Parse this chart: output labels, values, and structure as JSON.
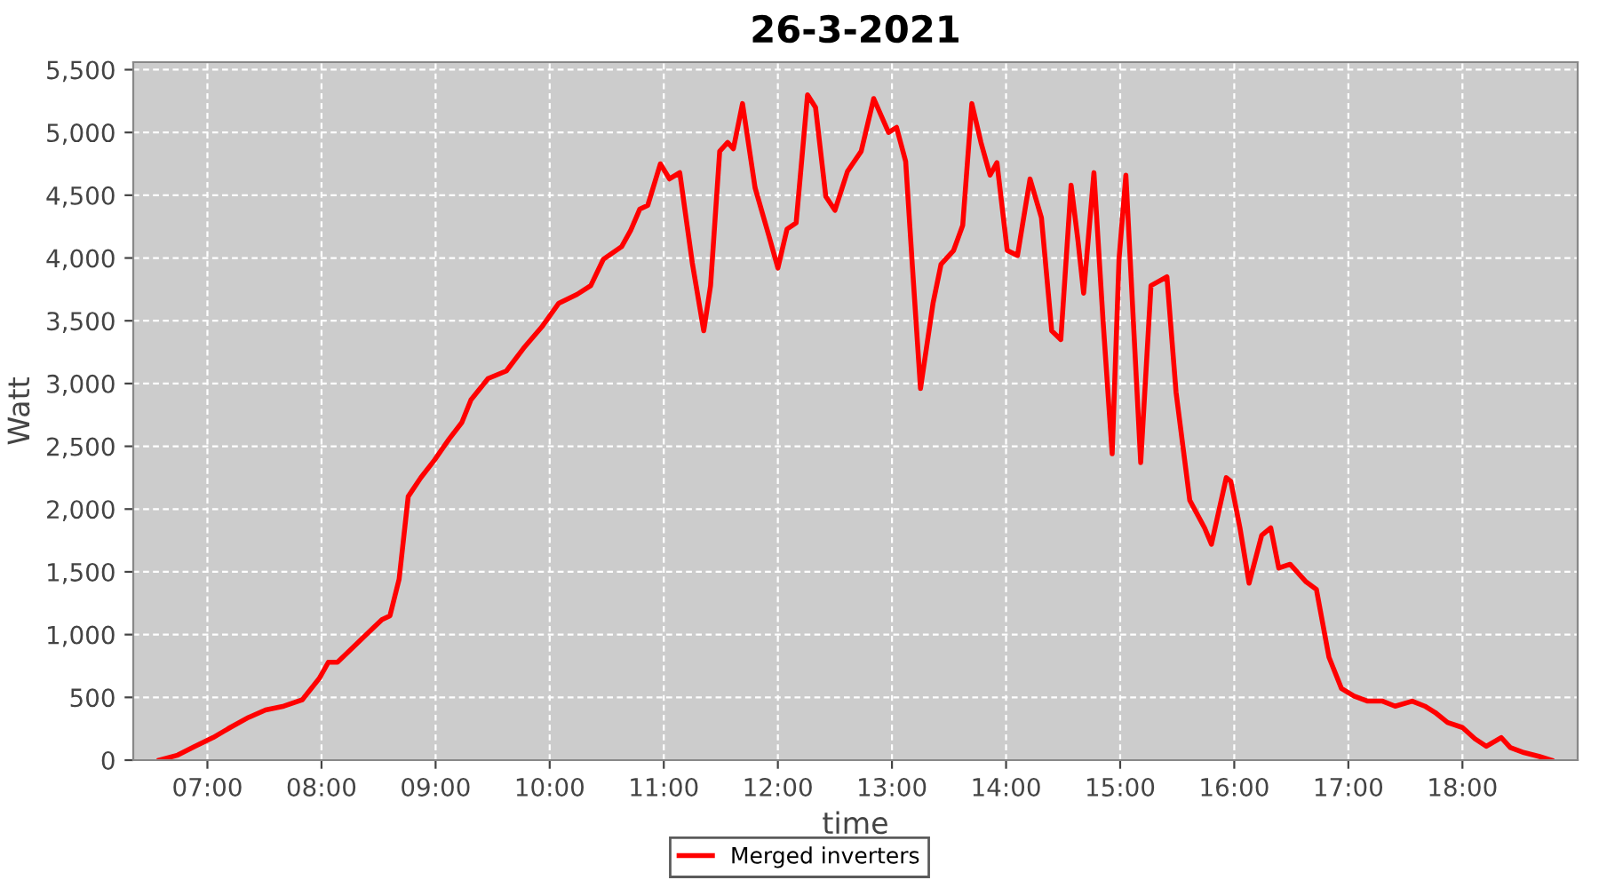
{
  "chart_data": {
    "type": "line",
    "title": "26-3-2021",
    "xlabel": "time",
    "ylabel": "Watt",
    "x": [
      6.58,
      6.74,
      6.89,
      7.05,
      7.2,
      7.36,
      7.51,
      7.67,
      7.83,
      7.98,
      8.06,
      8.14,
      8.29,
      8.45,
      8.53,
      8.6,
      8.68,
      8.76,
      8.87,
      8.99,
      9.12,
      9.23,
      9.31,
      9.46,
      9.62,
      9.77,
      9.93,
      10.08,
      10.24,
      10.36,
      10.47,
      10.63,
      10.71,
      10.79,
      10.86,
      10.97,
      11.05,
      11.14,
      11.25,
      11.35,
      11.41,
      11.49,
      11.56,
      11.61,
      11.69,
      11.8,
      11.92,
      12.0,
      12.08,
      12.16,
      12.26,
      12.33,
      12.42,
      12.5,
      12.61,
      12.73,
      12.84,
      12.97,
      13.04,
      13.12,
      13.18,
      13.25,
      13.36,
      13.43,
      13.54,
      13.62,
      13.7,
      13.78,
      13.86,
      13.92,
      14.01,
      14.1,
      14.21,
      14.31,
      14.4,
      14.48,
      14.57,
      14.63,
      14.68,
      14.77,
      14.85,
      14.93,
      14.99,
      15.05,
      15.12,
      15.18,
      15.27,
      15.33,
      15.41,
      15.49,
      15.61,
      15.74,
      15.8,
      15.93,
      15.97,
      16.05,
      16.13,
      16.24,
      16.32,
      16.39,
      16.49,
      16.63,
      16.72,
      16.83,
      16.94,
      17.05,
      17.17,
      17.3,
      17.41,
      17.56,
      17.67,
      17.76,
      17.87,
      18.0,
      18.11,
      18.21,
      18.34,
      18.42,
      18.54,
      18.67,
      18.78
    ],
    "series": [
      {
        "name": "Merged inverters",
        "color": "#ff0000",
        "values": [
          0,
          40,
          110,
          180,
          260,
          340,
          400,
          430,
          480,
          650,
          780,
          780,
          910,
          1050,
          1120,
          1150,
          1440,
          2100,
          2250,
          2390,
          2560,
          2690,
          2870,
          3040,
          3100,
          3280,
          3450,
          3640,
          3710,
          3780,
          3990,
          4090,
          4220,
          4390,
          4420,
          4750,
          4630,
          4680,
          3960,
          3420,
          3780,
          4850,
          4920,
          4870,
          5230,
          4560,
          4180,
          3920,
          4230,
          4280,
          5300,
          5200,
          4490,
          4380,
          4690,
          4850,
          5270,
          5000,
          5040,
          4770,
          3920,
          2960,
          3640,
          3950,
          4060,
          4260,
          5230,
          4920,
          4660,
          4760,
          4060,
          4020,
          4630,
          4320,
          3420,
          3350,
          4580,
          4140,
          3720,
          4680,
          3500,
          2440,
          3990,
          4660,
          3420,
          2370,
          3780,
          3810,
          3850,
          2930,
          2070,
          1850,
          1720,
          2250,
          2220,
          1850,
          1410,
          1790,
          1850,
          1530,
          1560,
          1420,
          1360,
          820,
          570,
          510,
          470,
          470,
          430,
          470,
          430,
          380,
          300,
          260,
          170,
          110,
          180,
          100,
          60,
          30,
          0
        ]
      }
    ],
    "xlim": [
      6.35,
      19.01
    ],
    "xticks": [
      {
        "value": 7,
        "label": "07:00"
      },
      {
        "value": 8,
        "label": "08:00"
      },
      {
        "value": 9,
        "label": "09:00"
      },
      {
        "value": 10,
        "label": "10:00"
      },
      {
        "value": 11,
        "label": "11:00"
      },
      {
        "value": 12,
        "label": "12:00"
      },
      {
        "value": 13,
        "label": "13:00"
      },
      {
        "value": 14,
        "label": "14:00"
      },
      {
        "value": 15,
        "label": "15:00"
      },
      {
        "value": 16,
        "label": "16:00"
      },
      {
        "value": 17,
        "label": "17:00"
      },
      {
        "value": 18,
        "label": "18:00"
      }
    ],
    "ylim": [
      0,
      5560
    ],
    "yticks": [
      {
        "value": 0,
        "label": "0"
      },
      {
        "value": 500,
        "label": "500"
      },
      {
        "value": 1000,
        "label": "1,000"
      },
      {
        "value": 1500,
        "label": "1,500"
      },
      {
        "value": 2000,
        "label": "2,000"
      },
      {
        "value": 2500,
        "label": "2,500"
      },
      {
        "value": 3000,
        "label": "3,000"
      },
      {
        "value": 3500,
        "label": "3,500"
      },
      {
        "value": 4000,
        "label": "4,000"
      },
      {
        "value": 4500,
        "label": "4,500"
      },
      {
        "value": 5000,
        "label": "5,000"
      },
      {
        "value": 5500,
        "label": "5,500"
      }
    ],
    "grid": true,
    "legend": "bottom",
    "marker": "none",
    "line_style": "solid"
  }
}
